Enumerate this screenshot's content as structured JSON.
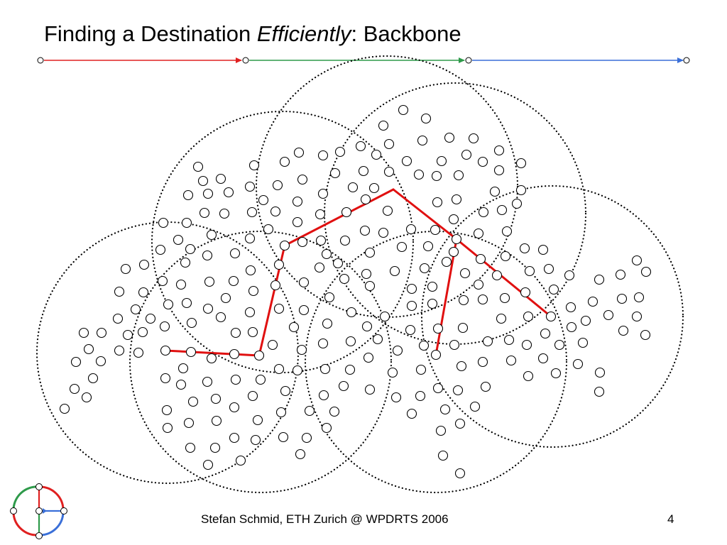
{
  "slide": {
    "title_before": "Finding a Destination ",
    "title_emphasis": "Efficiently",
    "title_after": ": Backbone",
    "footer_author": "Stefan Schmid, ETH Zurich @ WPDRTS 2006",
    "page_number": "4"
  },
  "colors": {
    "red": "#e02020",
    "green": "#2e9a4a",
    "blue": "#3a6fd8",
    "backbone": "#e01010"
  },
  "logo": {
    "icon": "eth-dcg-network-logo-icon"
  }
}
